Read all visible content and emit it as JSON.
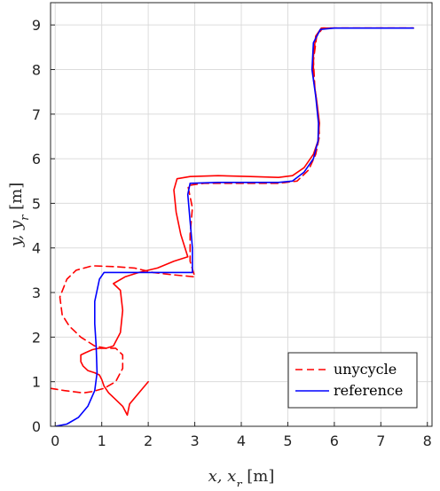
{
  "chart_data": {
    "type": "line",
    "title": "",
    "xlabel": "x,  x_r [m]",
    "ylabel": "y,  y_r [m]",
    "xlim": [
      -0.1,
      8.1
    ],
    "ylim": [
      0,
      9.5
    ],
    "xticks": [
      0,
      1,
      2,
      3,
      4,
      5,
      6,
      7,
      8
    ],
    "yticks": [
      0,
      1,
      2,
      3,
      4,
      5,
      6,
      7,
      8,
      9
    ],
    "grid": true,
    "legend_position": "bottom-right",
    "series": [
      {
        "name": "unycycle",
        "color": "#ff0000",
        "style": "solid-with-dashed-legend",
        "points": [
          [
            2.0,
            1.0
          ],
          [
            1.8,
            0.75
          ],
          [
            1.6,
            0.5
          ],
          [
            1.55,
            0.25
          ],
          [
            1.45,
            0.45
          ],
          [
            1.3,
            0.6
          ],
          [
            1.15,
            0.75
          ],
          [
            1.05,
            0.9
          ],
          [
            1.0,
            1.05
          ],
          [
            0.95,
            1.15
          ],
          [
            0.85,
            1.2
          ],
          [
            0.7,
            1.25
          ],
          [
            0.6,
            1.35
          ],
          [
            0.55,
            1.45
          ],
          [
            0.55,
            1.6
          ],
          [
            0.65,
            1.65
          ],
          [
            0.8,
            1.72
          ],
          [
            0.95,
            1.75
          ],
          [
            1.1,
            1.75
          ],
          [
            1.25,
            1.8
          ],
          [
            1.4,
            2.1
          ],
          [
            1.45,
            2.6
          ],
          [
            1.4,
            3.05
          ],
          [
            1.25,
            3.2
          ],
          [
            1.5,
            3.35
          ],
          [
            1.8,
            3.45
          ],
          [
            2.2,
            3.55
          ],
          [
            2.55,
            3.7
          ],
          [
            2.85,
            3.8
          ],
          [
            2.7,
            4.3
          ],
          [
            2.6,
            4.8
          ],
          [
            2.55,
            5.3
          ],
          [
            2.62,
            5.55
          ],
          [
            2.9,
            5.6
          ],
          [
            3.5,
            5.62
          ],
          [
            4.2,
            5.6
          ],
          [
            4.8,
            5.58
          ],
          [
            5.1,
            5.62
          ],
          [
            5.35,
            5.8
          ],
          [
            5.55,
            6.1
          ],
          [
            5.65,
            6.4
          ],
          [
            5.68,
            6.8
          ],
          [
            5.62,
            7.3
          ],
          [
            5.55,
            7.8
          ],
          [
            5.55,
            8.3
          ],
          [
            5.6,
            8.75
          ],
          [
            5.72,
            8.93
          ],
          [
            6.2,
            8.93
          ],
          [
            7.0,
            8.93
          ],
          [
            7.7,
            8.93
          ]
        ]
      },
      {
        "name": "",
        "color": "#ff0000",
        "style": "dashed",
        "points": [
          [
            -0.1,
            0.85
          ],
          [
            0.2,
            0.8
          ],
          [
            0.6,
            0.75
          ],
          [
            0.8,
            0.78
          ],
          [
            1.05,
            0.85
          ],
          [
            1.3,
            1.0
          ],
          [
            1.45,
            1.3
          ],
          [
            1.45,
            1.6
          ],
          [
            1.3,
            1.75
          ],
          [
            1.1,
            1.75
          ],
          [
            0.85,
            1.8
          ],
          [
            0.55,
            2.0
          ],
          [
            0.3,
            2.25
          ],
          [
            0.15,
            2.5
          ],
          [
            0.1,
            2.9
          ],
          [
            0.25,
            3.3
          ],
          [
            0.45,
            3.5
          ],
          [
            0.8,
            3.6
          ],
          [
            1.3,
            3.58
          ],
          [
            1.7,
            3.55
          ],
          [
            2.1,
            3.45
          ],
          [
            2.5,
            3.4
          ],
          [
            3.0,
            3.35
          ],
          [
            2.9,
            3.7
          ],
          [
            2.9,
            4.3
          ],
          [
            2.95,
            4.9
          ],
          [
            2.85,
            5.4
          ],
          [
            3.2,
            5.45
          ],
          [
            4.0,
            5.45
          ],
          [
            4.8,
            5.45
          ],
          [
            5.2,
            5.5
          ],
          [
            5.45,
            5.75
          ],
          [
            5.6,
            6.1
          ],
          [
            5.68,
            6.5
          ],
          [
            5.65,
            7.0
          ],
          [
            5.58,
            7.6
          ],
          [
            5.55,
            8.2
          ],
          [
            5.62,
            8.75
          ],
          [
            5.75,
            8.93
          ],
          [
            6.5,
            8.93
          ],
          [
            7.7,
            8.93
          ]
        ]
      },
      {
        "name": "reference",
        "color": "#0000ff",
        "style": "solid",
        "points": [
          [
            0.0,
            0.0
          ],
          [
            0.25,
            0.05
          ],
          [
            0.5,
            0.2
          ],
          [
            0.7,
            0.45
          ],
          [
            0.85,
            0.8
          ],
          [
            0.9,
            1.2
          ],
          [
            0.88,
            1.8
          ],
          [
            0.85,
            2.3
          ],
          [
            0.85,
            2.8
          ],
          [
            0.95,
            3.3
          ],
          [
            1.05,
            3.45
          ],
          [
            1.5,
            3.45
          ],
          [
            2.0,
            3.45
          ],
          [
            2.5,
            3.45
          ],
          [
            2.95,
            3.45
          ],
          [
            2.95,
            4.0
          ],
          [
            2.9,
            4.6
          ],
          [
            2.85,
            5.2
          ],
          [
            2.9,
            5.45
          ],
          [
            3.5,
            5.47
          ],
          [
            4.2,
            5.47
          ],
          [
            4.8,
            5.47
          ],
          [
            5.1,
            5.5
          ],
          [
            5.35,
            5.7
          ],
          [
            5.55,
            6.0
          ],
          [
            5.65,
            6.4
          ],
          [
            5.66,
            6.8
          ],
          [
            5.6,
            7.4
          ],
          [
            5.52,
            8.0
          ],
          [
            5.55,
            8.6
          ],
          [
            5.7,
            8.9
          ],
          [
            6.0,
            8.93
          ],
          [
            7.0,
            8.93
          ],
          [
            7.7,
            8.93
          ]
        ]
      }
    ],
    "legend": [
      {
        "label": "unycycle",
        "color": "#ff0000",
        "dash": true
      },
      {
        "label": "reference",
        "color": "#0000ff",
        "dash": false
      }
    ]
  }
}
